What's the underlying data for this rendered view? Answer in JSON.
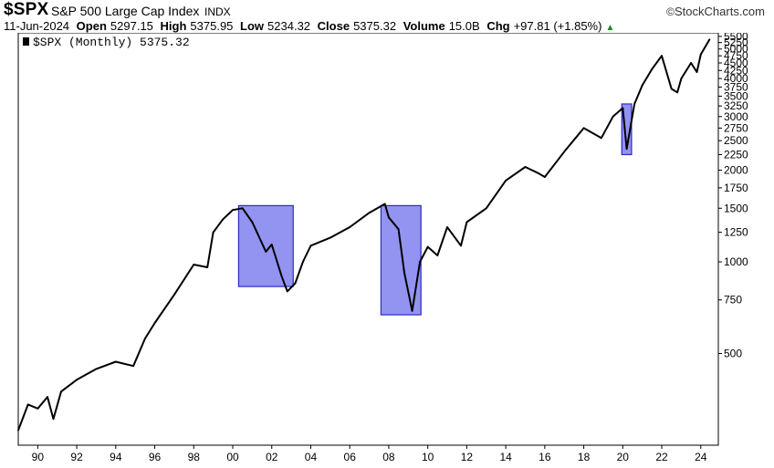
{
  "header": {
    "symbol": "$SPX",
    "description": "S&P 500 Large Cap Index",
    "exchange": "INDX",
    "brand": "StockCharts.com",
    "brand_prefix": "©",
    "date": "11-Jun-2024",
    "open_label": "Open",
    "open_value": "5297.15",
    "high_label": "High",
    "high_value": "5375.95",
    "low_label": "Low",
    "low_value": "5234.32",
    "close_label": "Close",
    "close_value": "5375.32",
    "volume_label": "Volume",
    "volume_value": "15.0B",
    "chg_label": "Chg",
    "chg_value": "+97.81 (+1.85%)",
    "chg_arrow": "▲"
  },
  "legend": {
    "text": "$SPX (Monthly) 5375.32"
  },
  "colors": {
    "price_line": "#000000",
    "highlight_fill": "#8080ee",
    "highlight_stroke": "#2a2ac8",
    "axis": "#000000",
    "up_arrow": "#1a8a1a"
  },
  "chart_data": {
    "type": "line",
    "scale": "log",
    "series": [
      {
        "values": [
          [
            1989.0,
            280
          ],
          [
            1989.5,
            340
          ],
          [
            1990.0,
            330
          ],
          [
            1990.5,
            360
          ],
          [
            1990.8,
            305
          ],
          [
            1991.2,
            375
          ],
          [
            1992.0,
            410
          ],
          [
            1993.0,
            445
          ],
          [
            1994.0,
            470
          ],
          [
            1994.9,
            455
          ],
          [
            1995.5,
            560
          ],
          [
            1996.0,
            630
          ],
          [
            1997.0,
            780
          ],
          [
            1998.0,
            980
          ],
          [
            1998.7,
            960
          ],
          [
            1999.0,
            1250
          ],
          [
            1999.5,
            1380
          ],
          [
            2000.0,
            1480
          ],
          [
            2000.5,
            1500
          ],
          [
            2001.0,
            1350
          ],
          [
            2001.7,
            1080
          ],
          [
            2002.0,
            1140
          ],
          [
            2002.5,
            900
          ],
          [
            2002.8,
            800
          ],
          [
            2003.2,
            850
          ],
          [
            2003.6,
            1000
          ],
          [
            2004.0,
            1130
          ],
          [
            2005.0,
            1200
          ],
          [
            2006.0,
            1300
          ],
          [
            2007.0,
            1450
          ],
          [
            2007.8,
            1550
          ],
          [
            2008.0,
            1400
          ],
          [
            2008.5,
            1280
          ],
          [
            2008.8,
            920
          ],
          [
            2009.2,
            690
          ],
          [
            2009.6,
            1000
          ],
          [
            2010.0,
            1120
          ],
          [
            2010.5,
            1050
          ],
          [
            2011.0,
            1300
          ],
          [
            2011.7,
            1130
          ],
          [
            2012.0,
            1350
          ],
          [
            2013.0,
            1500
          ],
          [
            2014.0,
            1850
          ],
          [
            2015.0,
            2050
          ],
          [
            2015.7,
            1950
          ],
          [
            2016.0,
            1900
          ],
          [
            2017.0,
            2300
          ],
          [
            2018.0,
            2750
          ],
          [
            2018.9,
            2550
          ],
          [
            2019.5,
            3000
          ],
          [
            2020.0,
            3200
          ],
          [
            2020.2,
            2350
          ],
          [
            2020.6,
            3300
          ],
          [
            2021.0,
            3800
          ],
          [
            2021.5,
            4300
          ],
          [
            2022.0,
            4750
          ],
          [
            2022.5,
            3700
          ],
          [
            2022.8,
            3600
          ],
          [
            2023.0,
            4000
          ],
          [
            2023.5,
            4500
          ],
          [
            2023.8,
            4200
          ],
          [
            2024.0,
            4800
          ],
          [
            2024.45,
            5375
          ]
        ]
      }
    ],
    "highlights": [
      {
        "x": [
          2000.3,
          2003.1
        ],
        "y": [
          830,
          1530
        ]
      },
      {
        "x": [
          2007.6,
          2009.65
        ],
        "y": [
          670,
          1530
        ]
      },
      {
        "x": [
          2019.95,
          2020.45
        ],
        "y": [
          2250,
          3300
        ]
      }
    ],
    "xlim": [
      1989.0,
      2024.9
    ],
    "ylim": [
      250,
      5650
    ],
    "y_ticks": [
      500,
      750,
      1000,
      1250,
      1500,
      1750,
      2000,
      2250,
      2500,
      2750,
      3000,
      3250,
      3500,
      3750,
      4000,
      4250,
      4500,
      4750,
      5000,
      5250,
      5500
    ],
    "y_tick_labels": [
      "500",
      "750",
      "1000",
      "1250",
      "1500",
      "1750",
      "2000",
      "2250",
      "2500",
      "2750",
      "3000",
      "3250",
      "3500",
      "3750",
      "4000",
      "4250",
      "4500",
      "4750",
      "5000",
      "5250",
      "5500"
    ],
    "x_ticks": [
      1990,
      1992,
      1994,
      1996,
      1998,
      2000,
      2002,
      2004,
      2006,
      2008,
      2010,
      2012,
      2014,
      2016,
      2018,
      2020,
      2022,
      2024
    ],
    "x_tick_labels": [
      "90",
      "92",
      "94",
      "96",
      "98",
      "00",
      "02",
      "04",
      "06",
      "08",
      "10",
      "12",
      "14",
      "16",
      "18",
      "20",
      "22",
      "24"
    ],
    "grid": false
  }
}
